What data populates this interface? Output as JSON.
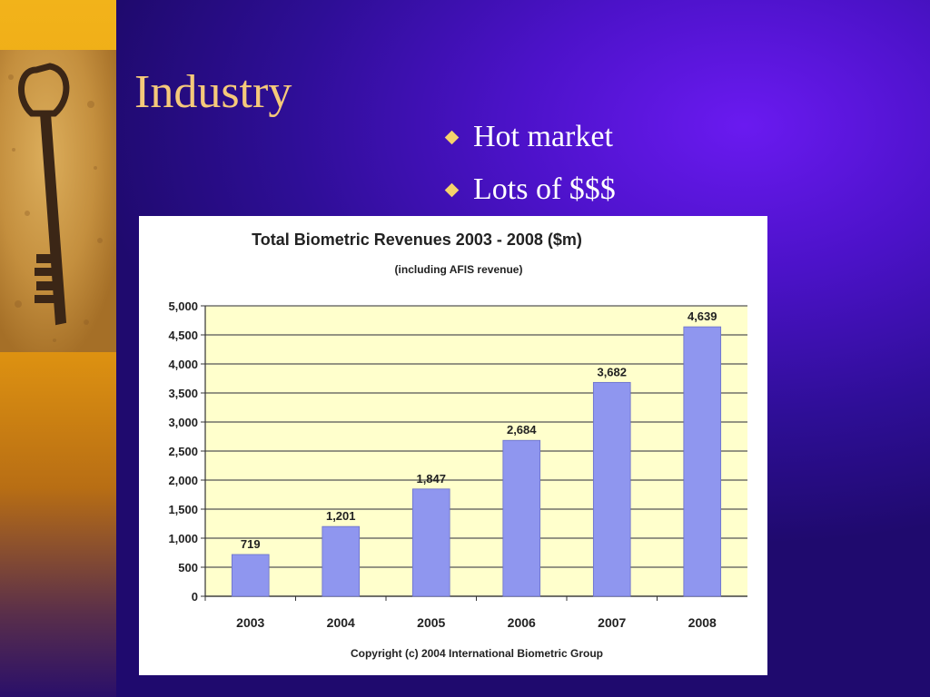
{
  "slide": {
    "title": "Industry",
    "bullets": [
      "Hot market",
      "Lots of $$$"
    ]
  },
  "colors": {
    "bar": "#8f96ef",
    "plot_bg": "#ffffcc",
    "grid": "#333333",
    "title_text": "#f5c97a"
  },
  "chart_data": {
    "type": "bar",
    "title": "Total Biometric Revenues 2003 - 2008 ($m)",
    "subtitle": "(including AFIS revenue)",
    "footer": "Copyright (c) 2004 International Biometric Group",
    "categories": [
      "2003",
      "2004",
      "2005",
      "2006",
      "2007",
      "2008"
    ],
    "values": [
      719,
      1201,
      1847,
      2684,
      3682,
      4639
    ],
    "data_labels": [
      "719",
      "1,201",
      "1,847",
      "2,684",
      "3,682",
      "4,639"
    ],
    "ylim": [
      0,
      5000
    ],
    "yticks": [
      0,
      500,
      1000,
      1500,
      2000,
      2500,
      3000,
      3500,
      4000,
      4500,
      5000
    ],
    "ytick_labels": [
      "0",
      "500",
      "1,000",
      "1,500",
      "2,000",
      "2,500",
      "3,000",
      "3,500",
      "4,000",
      "4,500",
      "5,000"
    ],
    "grid": true
  }
}
